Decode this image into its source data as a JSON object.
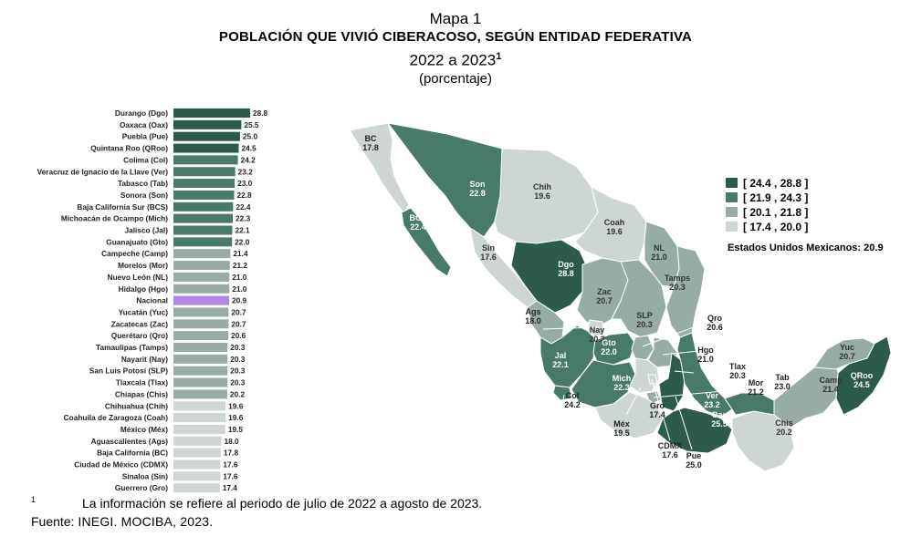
{
  "header": {
    "line1": "Mapa 1",
    "line2": "POBLACIÓN QUE VIVIÓ CIBERACOSO, SEGÚN ENTIDAD FEDERATIVA",
    "line3": "2022 a 2023",
    "line3_sup": "1",
    "line4": "(porcentaje)"
  },
  "colors": {
    "c1": "#2c5a4b",
    "c2": "#477a6a",
    "c3": "#97aca6",
    "c4": "#cdd6d3",
    "national": "#ae87e6",
    "border": "#ffffff"
  },
  "chart_data": {
    "type": "bar",
    "orientation": "horizontal",
    "title": "POBLACIÓN QUE VIVIÓ CIBERACOSO, SEGÚN ENTIDAD FEDERATIVA",
    "unit": "porcentaje",
    "categories": [
      "Durango (Dgo)",
      "Oaxaca (Oax)",
      "Puebla (Pue)",
      "Quintana Roo (QRoo)",
      "Colima (Col)",
      "Veracruz de Ignacio de la Llave (Ver)",
      "Tabasco (Tab)",
      "Sonora (Son)",
      "Baja California Sur (BCS)",
      "Michoacán de Ocampo (Mich)",
      "Jalisco (Jal)",
      "Guanajuato (Gto)",
      "Campeche (Camp)",
      "Morelos (Mor)",
      "Nuevo León (NL)",
      "Hidalgo (Hgo)",
      "Nacional",
      "Yucatán (Yuc)",
      "Zacatecas (Zac)",
      "Querétaro (Qro)",
      "Tamaulipas (Tamps)",
      "Nayarit (Nay)",
      "San Luis Potosí (SLP)",
      "Tlaxcala (Tlax)",
      "Chiapas (Chis)",
      "Chihuahua (Chih)",
      "Coahuila de Zaragoza (Coah)",
      "México (Méx)",
      "Aguascalientes (Ags)",
      "Baja California (BC)",
      "Ciudad de México (CDMX)",
      "Sinaloa (Sin)",
      "Guerrero (Gro)"
    ],
    "values": [
      28.8,
      25.5,
      25.0,
      24.5,
      24.2,
      23.2,
      23.0,
      22.8,
      22.4,
      22.3,
      22.1,
      22.0,
      21.4,
      21.2,
      21.0,
      21.0,
      20.9,
      20.7,
      20.7,
      20.6,
      20.3,
      20.3,
      20.3,
      20.3,
      20.2,
      19.6,
      19.6,
      19.5,
      18.0,
      17.8,
      17.6,
      17.6,
      17.4
    ],
    "value_labels": [
      "28.8",
      "25.5",
      "25.0",
      "24.5",
      "24.2",
      "23.2",
      "23.0",
      "22.8",
      "22.4",
      "22.3",
      "22.1",
      "22.0",
      "21.4",
      "21.2",
      "21.0",
      "21.0",
      "20.9",
      "20.7",
      "20.7",
      "20.6",
      "20.3",
      "20.3",
      "20.3",
      "20.3",
      "20.2",
      "19.6",
      "19.6",
      "19.5",
      "18.0",
      "17.8",
      "17.6",
      "17.6",
      "17.4"
    ],
    "xlim": [
      0,
      28.8
    ],
    "highlight": "Nacional"
  },
  "map": {
    "legend": [
      {
        "label": "[ 24.4 , 28.8 ]",
        "color": "#2c5a4b"
      },
      {
        "label": "[ 21.9 , 24.3 ]",
        "color": "#477a6a"
      },
      {
        "label": "[ 20.1 , 21.8 ]",
        "color": "#97aca6"
      },
      {
        "label": "[ 17.4 , 20.0 ]",
        "color": "#cdd6d3"
      }
    ],
    "national_label": "Estados Unidos Mexicanos:",
    "national_value": "20.9",
    "states": [
      {
        "abbr": "BC",
        "value": "17.8"
      },
      {
        "abbr": "BCS",
        "value": "22.4"
      },
      {
        "abbr": "Son",
        "value": "22.8"
      },
      {
        "abbr": "Chih",
        "value": "19.6"
      },
      {
        "abbr": "Coah",
        "value": "19.6"
      },
      {
        "abbr": "NL",
        "value": "21.0"
      },
      {
        "abbr": "Sin",
        "value": "17.6"
      },
      {
        "abbr": "Dgo",
        "value": "28.8"
      },
      {
        "abbr": "Tamps",
        "value": "20.3"
      },
      {
        "abbr": "Zac",
        "value": "20.7"
      },
      {
        "abbr": "SLP",
        "value": "20.3"
      },
      {
        "abbr": "Ags",
        "value": "18.0"
      },
      {
        "abbr": "Nay",
        "value": "20.3"
      },
      {
        "abbr": "Qro",
        "value": "20.6"
      },
      {
        "abbr": "Hgo",
        "value": "21.0"
      },
      {
        "abbr": "Jal",
        "value": "22.1"
      },
      {
        "abbr": "Gto",
        "value": "22.0"
      },
      {
        "abbr": "Mich",
        "value": "22.3"
      },
      {
        "abbr": "Col",
        "value": "24.2"
      },
      {
        "abbr": "Méx",
        "value": "19.5"
      },
      {
        "abbr": "Gro",
        "value": "17.4"
      },
      {
        "abbr": "CDMX",
        "value": "17.6"
      },
      {
        "abbr": "Pue",
        "value": "25.0"
      },
      {
        "abbr": "Tlax",
        "value": "20.3"
      },
      {
        "abbr": "Mor",
        "value": "21.2"
      },
      {
        "abbr": "Ver",
        "value": "23.2"
      },
      {
        "abbr": "Oax",
        "value": "25.5"
      },
      {
        "abbr": "Tab",
        "value": "23.0"
      },
      {
        "abbr": "Chis",
        "value": "20.2"
      },
      {
        "abbr": "Camp",
        "value": "21.4"
      },
      {
        "abbr": "Yuc",
        "value": "20.7"
      },
      {
        "abbr": "QRoo",
        "value": "24.5"
      }
    ]
  },
  "footnote": {
    "mark": "1",
    "text": "La información se refiere al periodo de julio de 2022 a agosto de 2023."
  },
  "source": {
    "label": "Fuente:",
    "text": "INEGI. MOCIBA, 2023."
  }
}
